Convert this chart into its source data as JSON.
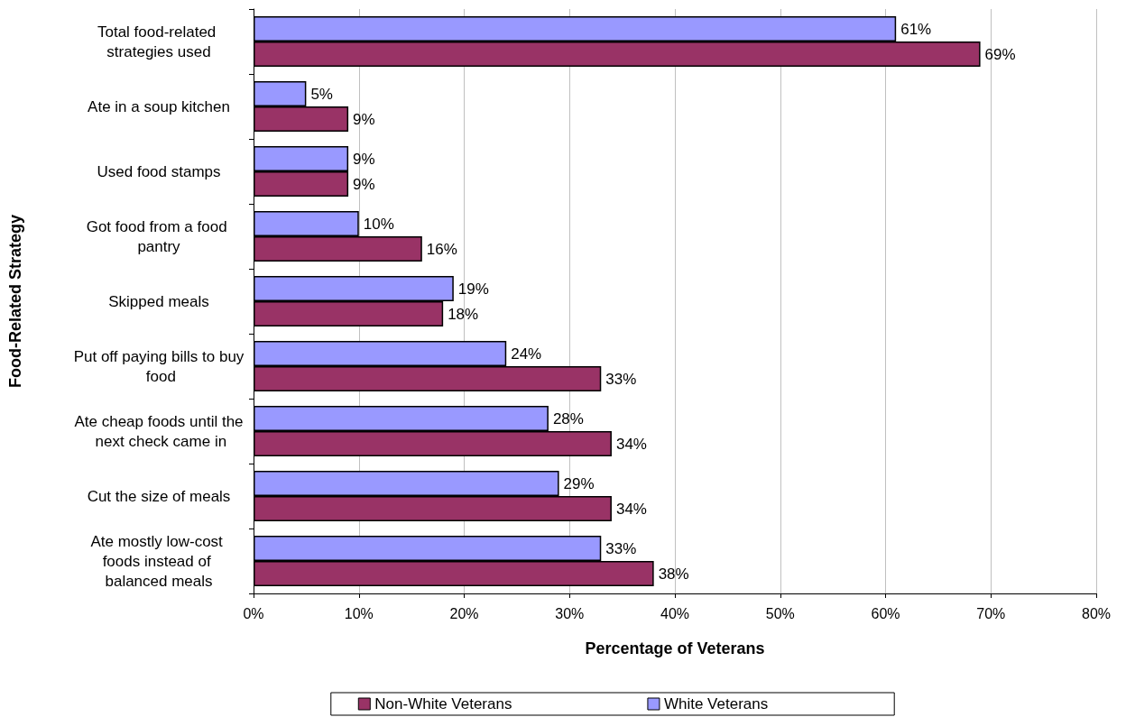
{
  "chart_data": {
    "type": "bar",
    "orientation": "horizontal",
    "xlabel": "Percentage of Veterans",
    "ylabel": "Food-Related Strategy",
    "categories": [
      "Total food-related strategies used",
      "Ate in a soup kitchen",
      "Used food stamps",
      "Got food from a food pantry",
      "Skipped meals",
      "Put off paying bills to buy food",
      "Ate cheap foods until the next check came in",
      "Cut the size of meals",
      "Ate mostly low-cost foods instead of balanced meals"
    ],
    "series": [
      {
        "name": "White Veterans",
        "color": "#9999ff",
        "values": [
          61,
          5,
          9,
          10,
          19,
          24,
          28,
          29,
          33
        ],
        "value_labels": [
          "61%",
          "5%",
          "9%",
          "10%",
          "19%",
          "24%",
          "28%",
          "29%",
          "33%"
        ]
      },
      {
        "name": "Non-White Veterans",
        "color": "#993366",
        "values": [
          69,
          9,
          9,
          16,
          18,
          33,
          34,
          34,
          38
        ],
        "value_labels": [
          "69%",
          "9%",
          "9%",
          "16%",
          "18%",
          "33%",
          "34%",
          "34%",
          "38%"
        ]
      }
    ],
    "xlim": [
      0,
      80
    ],
    "xticks": [
      {
        "value": 0,
        "label": "0%"
      },
      {
        "value": 10,
        "label": "10%"
      },
      {
        "value": 20,
        "label": "20%"
      },
      {
        "value": 30,
        "label": "30%"
      },
      {
        "value": 40,
        "label": "40%"
      },
      {
        "value": 50,
        "label": "50%"
      },
      {
        "value": 60,
        "label": "60%"
      },
      {
        "value": 70,
        "label": "70%"
      },
      {
        "value": 80,
        "label": "80%"
      }
    ],
    "grid": "x",
    "legend": "bottom"
  }
}
